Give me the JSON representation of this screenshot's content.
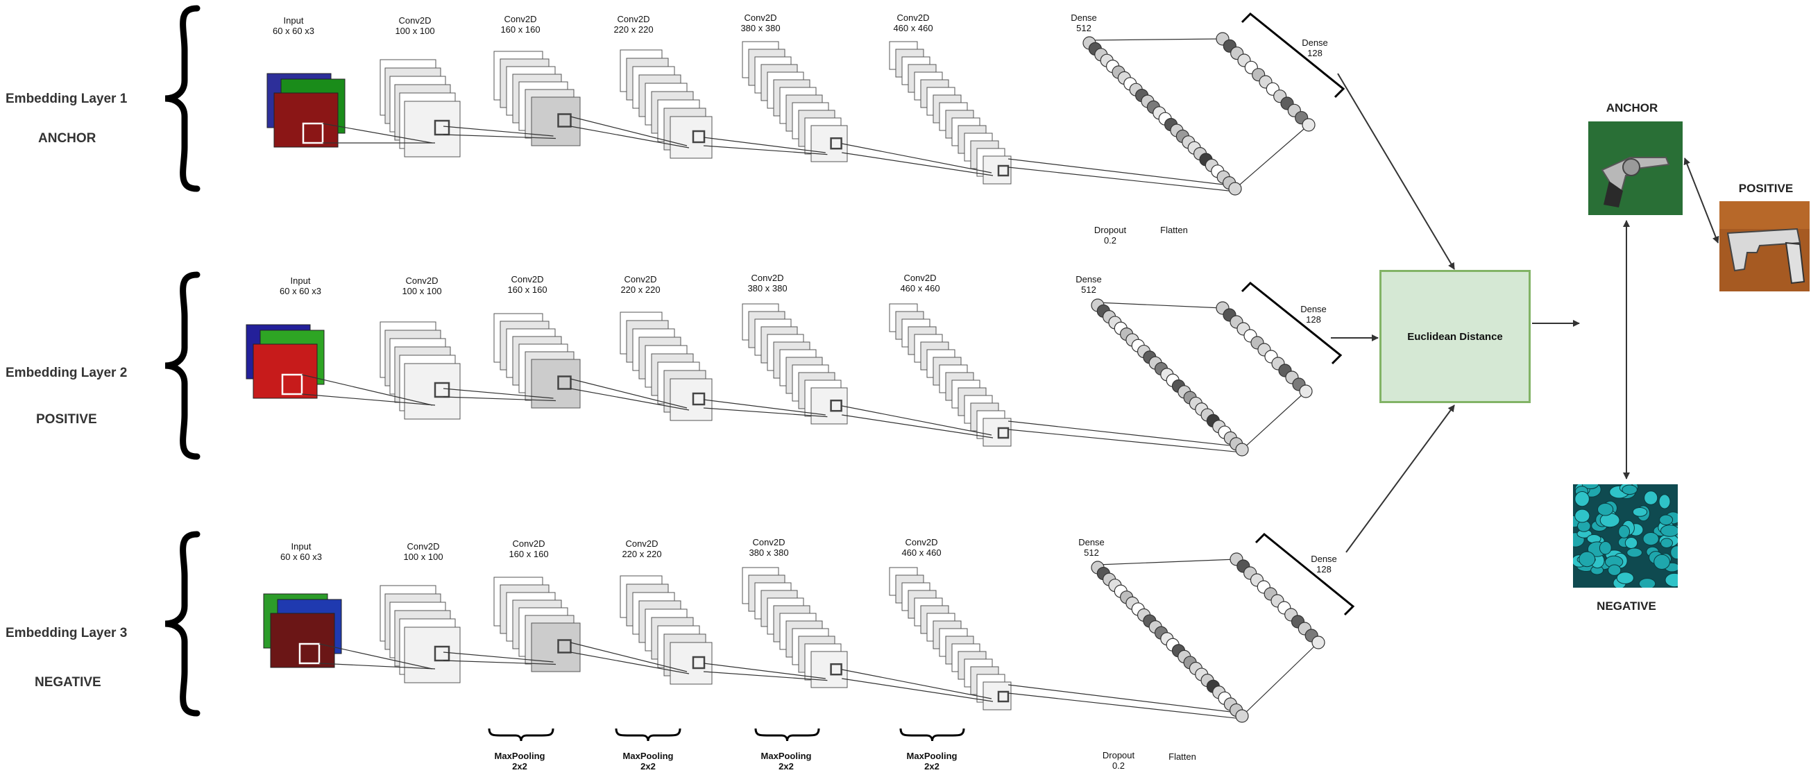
{
  "rows": [
    {
      "title": "Embedding Layer 1",
      "role": "ANCHOR",
      "input_label": [
        "Input",
        "60 x 60 x3"
      ],
      "conv_layers": [
        [
          "Conv2D",
          "100 x 100"
        ],
        [
          "Conv2D",
          "160 x 160"
        ],
        [
          "Conv2D",
          "220 x 220"
        ],
        [
          "Conv2D",
          "380 x 380"
        ],
        [
          "Conv2D",
          "460 x 460"
        ]
      ],
      "dense_512": [
        "Dense",
        "512"
      ],
      "dense_128": [
        "Dense",
        "128"
      ],
      "dropout": [
        "Dropout",
        "0.2"
      ],
      "flatten": "Flatten"
    },
    {
      "title": "Embedding Layer 2",
      "role": "POSITIVE",
      "input_label": [
        "Input",
        "60 x 60 x3"
      ],
      "conv_layers": [
        [
          "Conv2D",
          "100 x 100"
        ],
        [
          "Conv2D",
          "160 x 160"
        ],
        [
          "Conv2D",
          "220 x 220"
        ],
        [
          "Conv2D",
          "380 x 380"
        ],
        [
          "Conv2D",
          "460 x 460"
        ]
      ],
      "dense_512": [
        "Dense",
        "512"
      ],
      "dense_128": [
        "Dense",
        "128"
      ]
    },
    {
      "title": "Embedding Layer 3",
      "role": "NEGATIVE",
      "input_label": [
        "Input",
        "60 x 60 x3"
      ],
      "conv_layers": [
        [
          "Conv2D",
          "100 x 100"
        ],
        [
          "Conv2D",
          "160 x 160"
        ],
        [
          "Conv2D",
          "220 x 220"
        ],
        [
          "Conv2D",
          "380 x 380"
        ],
        [
          "Conv2D",
          "460 x 460"
        ]
      ],
      "dense_512": [
        "Dense",
        "512"
      ],
      "dense_128": [
        "Dense",
        "128"
      ],
      "dropout": [
        "Dropout",
        "0.2"
      ],
      "flatten": "Flatten",
      "maxpooling": [
        [
          "MaxPooling",
          "2x2"
        ],
        [
          "MaxPooling",
          "2x2"
        ],
        [
          "MaxPooling",
          "2x2"
        ],
        [
          "MaxPooling",
          "2x2"
        ]
      ]
    }
  ],
  "euclidean": "Euclidean Distance",
  "outputs": {
    "anchor": "ANCHOR",
    "positive": "POSITIVE",
    "negative": "NEGATIVE"
  },
  "colors": {
    "box_fill": "#d5e8d4",
    "box_stroke": "#82b366",
    "line": "#333333"
  }
}
